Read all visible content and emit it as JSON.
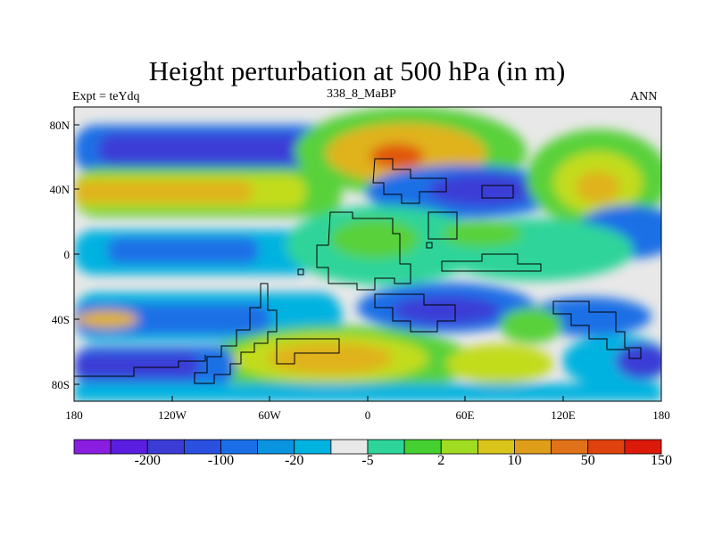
{
  "title": "Height perturbation at 500 hPa (in m)",
  "left_label": "Expt = teYdq",
  "center_label": "338_8_MaBP",
  "right_label": "ANN",
  "colors": {
    "neg_strong": "#3b3cd6",
    "neg_mid": "#1a6fe6",
    "neg_weak": "#00b2e0",
    "zero": "#e8e8e8",
    "pos_weak": "#2fd49a",
    "pos_mid": "#58d13a",
    "pos_light": "#c2dc1e",
    "pos_strong": "#e0b21a",
    "pos_max": "#e0560e"
  },
  "map": {
    "lat_ticks": [
      "80N",
      "40N",
      "0",
      "40S",
      "80S"
    ],
    "lon_ticks": [
      "180",
      "120W",
      "60W",
      "0",
      "60E",
      "120E",
      "180"
    ]
  },
  "colorbar": {
    "colors": [
      "#8a1ee0",
      "#5a1ee0",
      "#3b3cd6",
      "#2a50e0",
      "#1a6fe6",
      "#0a94e0",
      "#00b2e0",
      "#e8e8e8",
      "#2fd49a",
      "#45d032",
      "#a0dc22",
      "#d8c41a",
      "#e09d1a",
      "#e0721a",
      "#e0420e",
      "#dc1a0a"
    ],
    "labels": [
      "-200",
      "-100",
      "-20",
      "-5",
      "2",
      "10",
      "50",
      "150"
    ]
  }
}
